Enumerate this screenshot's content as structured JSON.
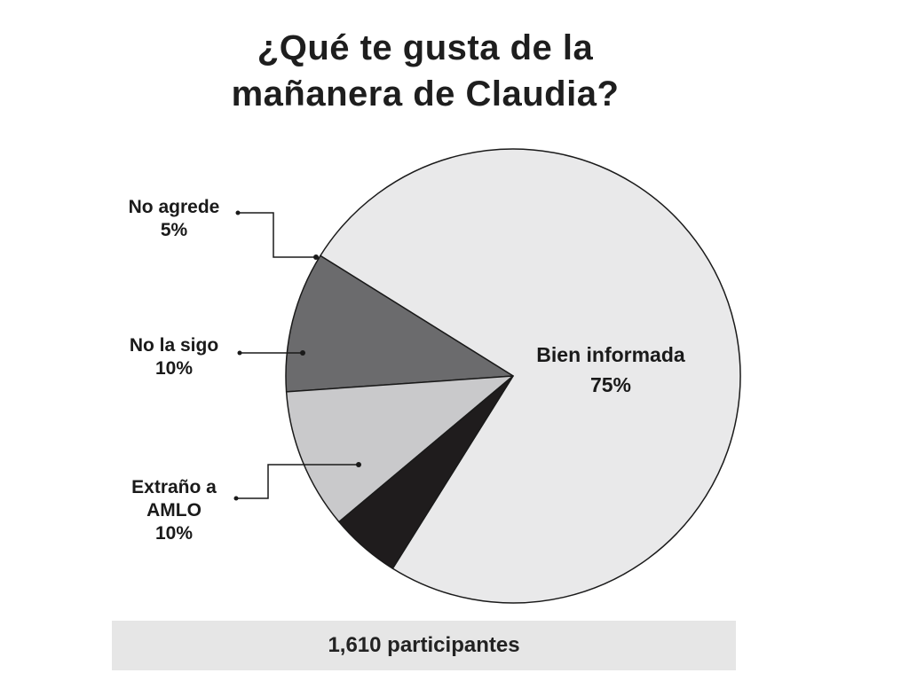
{
  "title_line1": "¿Qué te gusta de la",
  "title_line2": "mañanera de Claudia?",
  "footer": "1,610 participantes",
  "chart_data": {
    "type": "pie",
    "title": "¿Qué te gusta de la mañanera de Claudia?",
    "slices": [
      {
        "label_lines": [
          "Bien informada"
        ],
        "value": 75,
        "value_label": "75%",
        "color": "#e9e9ea"
      },
      {
        "label_lines": [
          "Extraño a",
          "AMLO"
        ],
        "value": 10,
        "value_label": "10%",
        "color": "#6b6b6d"
      },
      {
        "label_lines": [
          "No la sigo"
        ],
        "value": 10,
        "value_label": "10%",
        "color": "#c9c9cb"
      },
      {
        "label_lines": [
          "No agrede"
        ],
        "value": 5,
        "value_label": "5%",
        "color": "#1f1c1d"
      }
    ],
    "stroke_color": "#1a1a1a"
  }
}
